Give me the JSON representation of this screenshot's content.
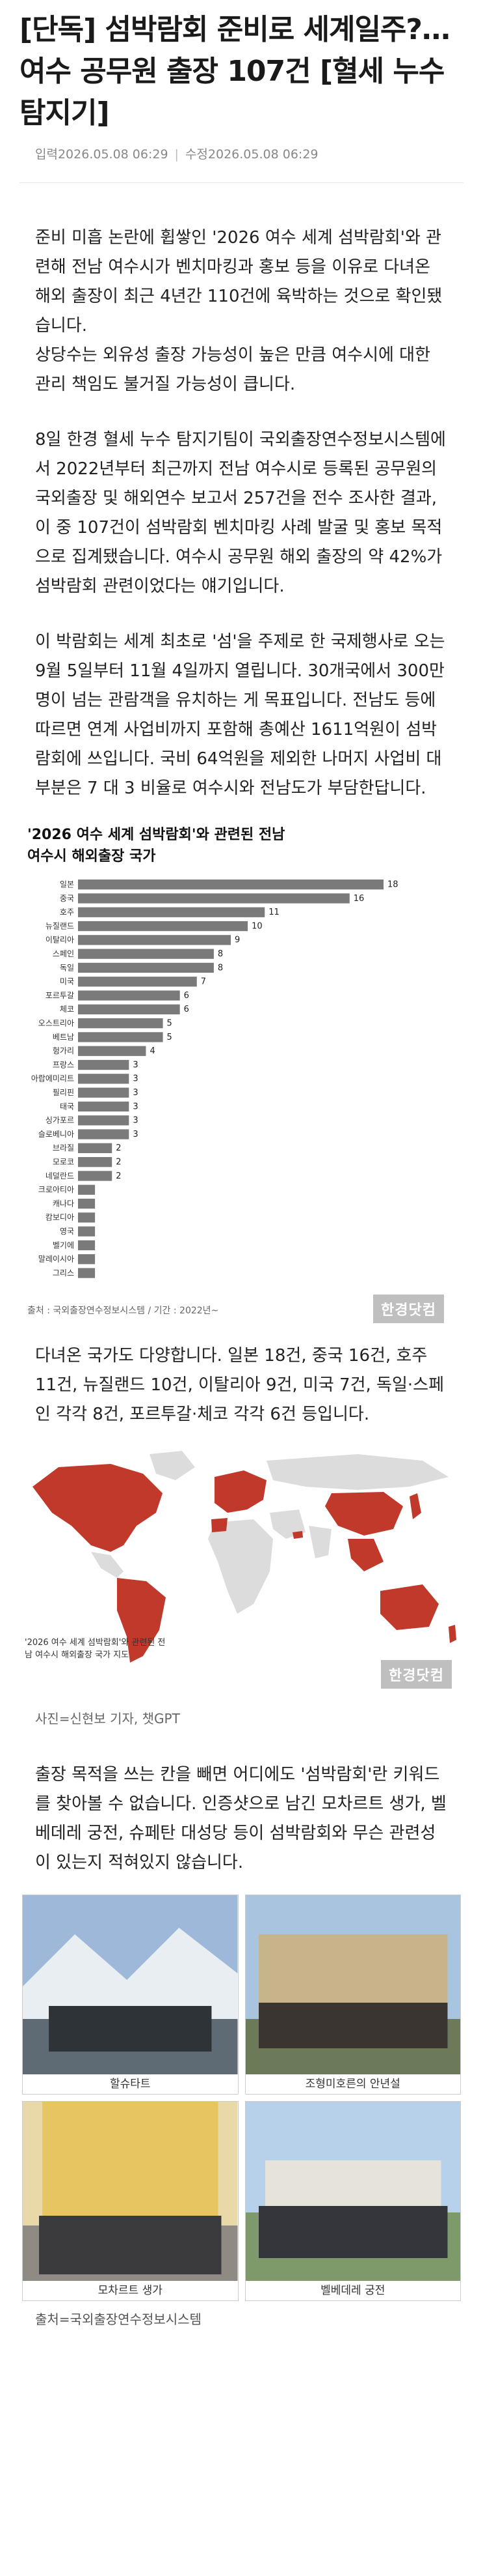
{
  "article": {
    "title": "[단독] 섬박람회 준비로 세계일주?…여수 공무원 출장 107건 [혈세 누수 탐지기]",
    "published": "입력2026.05.08 06:29",
    "modified": "수정2026.05.08 06:29"
  },
  "body": {
    "p1": "준비 미흡 논란에 휩쌓인 '2026 여수 세계 섬박람회'와 관련해 전남 여수시가 벤치마킹과 홍보 등을 이유로 다녀온 해외 출장이 최근 4년간 110건에 육박하는 것으로 확인됐습니다.",
    "p2": "상당수는 외유성 출장 가능성이 높은 만큼 여수시에 대한 관리 책임도 불거질 가능성이 큽니다.",
    "p3": "8일 한경 혈세 누수 탐지기팀이 국외출장연수정보시스템에서 2022년부터 최근까지 전남 여수시로 등록된 공무원의 국외출장 및 해외연수 보고서 257건을 전수 조사한 결과, 이 중 107건이 섬박람회 벤치마킹 사례 발굴 및 홍보 목적으로 집계됐습니다. 여수시 공무원 해외 출장의 약 42%가 섬박람회 관련이었다는 얘기입니다.",
    "p4": "이 박람회는 세계 최초로 '섬'을 주제로 한 국제행사로 오는 9월 5일부터 11월 4일까지 열립니다. 30개국에서 300만명이 넘는 관람객을 유치하는 게 목표입니다. 전남도 등에 따르면 연계 사업비까지 포함해 총예산 1611억원이 섬박람회에 쓰입니다. 국비 64억원을 제외한 나머지 사업비 대부분은 7 대 3 비율로 여수시와 전남도가 부담한답니다.",
    "p5": "다녀온 국가도 다양합니다. 일본 18건, 중국 16건, 호주 11건, 뉴질랜드 10건, 이탈리아 9건, 미국 7건, 독일·스페인 각각 8건, 포르투갈·체코 각각 6건 등입니다.",
    "photo_credit": "사진=신현보 기자, 챗GPT",
    "p6": "출장 목적을 쓰는 칸을 빼면 어디에도 '섬박람회'란 키워드를 찾아볼 수 없습니다. 인증샷으로 남긴 모차르트 생가, 벨베데레 궁전, 슈페탄 대성당 등이 섬박람회와 무슨 관련성이 있는지 적혀있지 않습니다.",
    "final_source": "출처=국외출장연수정보시스템"
  },
  "chart_data": {
    "type": "bar",
    "orientation": "horizontal",
    "title": "'2026 여수 세계 섬박람회'와 관련된 전남 여수시 해외출장 국가",
    "categories": [
      "일본",
      "중국",
      "호주",
      "뉴질랜드",
      "이탈리아",
      "스페인",
      "독일",
      "미국",
      "포르투갈",
      "체코",
      "오스트리아",
      "베트남",
      "헝가리",
      "프랑스",
      "아랍에미리트",
      "필리핀",
      "태국",
      "싱가포르",
      "슬로베니아",
      "브라질",
      "모로코",
      "네덜란드",
      "크로아티아",
      "캐나다",
      "캄보디아",
      "영국",
      "벨기에",
      "말레이시아",
      "그리스"
    ],
    "values": [
      18,
      16,
      11,
      10,
      9,
      8,
      8,
      7,
      6,
      6,
      5,
      5,
      4,
      3,
      3,
      3,
      3,
      3,
      3,
      2,
      2,
      2,
      1,
      1,
      1,
      1,
      1,
      1,
      1
    ],
    "label_min": 1,
    "xlim": [
      0,
      18
    ],
    "bar_color": "#7a7a7a",
    "source": "출처 : 국외출장연수정보시스템 / 기간 : 2022년~",
    "brand": "한경닷컴"
  },
  "map": {
    "caption": "'2026 여수 세계 섬박람회'와 관련된 전남 여수시 해외출장 국가 지도",
    "brand": "한경닷컴",
    "highlight_color": "#c0392b",
    "base_color": "#dcdcdc"
  },
  "photos": [
    {
      "caption": "할슈타트"
    },
    {
      "caption": "조형미호른의 안년설"
    },
    {
      "caption": "모차르트 생가"
    },
    {
      "caption": "벨베데레 궁전"
    }
  ]
}
